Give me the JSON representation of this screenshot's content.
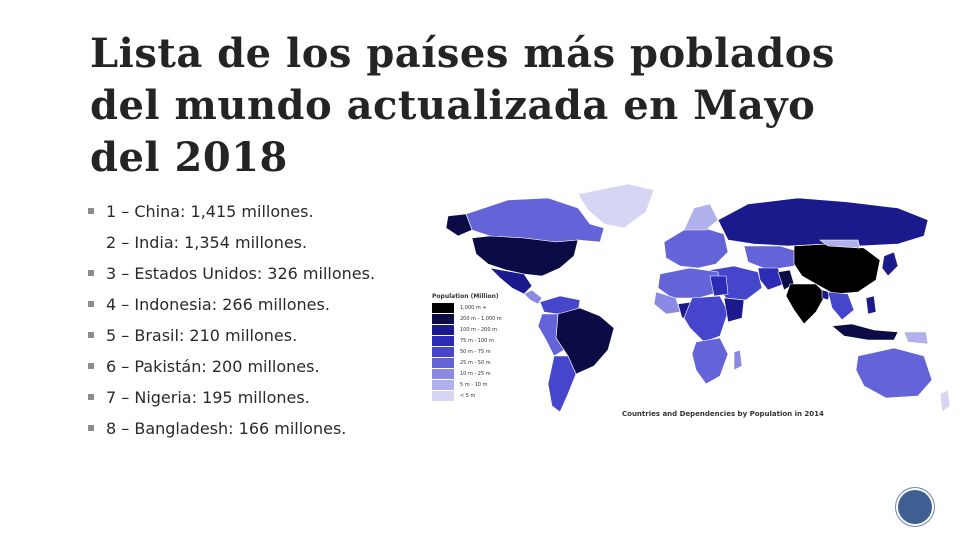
{
  "slide": {
    "title": "Lista de los países más poblados del mundo actualizada en Mayo del 2018",
    "bullets": [
      {
        "text": "1 – China: 1,415 millones.",
        "marker": true
      },
      {
        "text": "2 – India: 1,354 millones.",
        "marker": false
      },
      {
        "text": "3 – Estados Unidos: 326 millones.",
        "marker": true
      },
      {
        "text": "4 – Indonesia: 266 millones.",
        "marker": true
      },
      {
        "text": "5 – Brasil: 210 millones.",
        "marker": true
      },
      {
        "text": "6 – Pakistán: 200 millones.",
        "marker": true
      },
      {
        "text": "7 – Nigeria: 195 millones.",
        "marker": true
      },
      {
        "text": "8 – Bangladesh: 166 millones.",
        "marker": true
      }
    ]
  },
  "map": {
    "legend_title": "Population (Million)",
    "legend": [
      {
        "label": "1,000 m +",
        "color": "#000000"
      },
      {
        "label": "200 m - 1,000 m",
        "color": "#0b0b45"
      },
      {
        "label": "100 m - 200 m",
        "color": "#1a1a8c"
      },
      {
        "label": "75 m - 100 m",
        "color": "#2b2bb5"
      },
      {
        "label": "50 m - 75 m",
        "color": "#4646cc"
      },
      {
        "label": "25 m - 50 m",
        "color": "#6464d8"
      },
      {
        "label": "10 m - 25 m",
        "color": "#8a8ae2"
      },
      {
        "label": "5 m - 10 m",
        "color": "#b0b0ec"
      },
      {
        "label": "< 5 m",
        "color": "#d6d6f4"
      }
    ],
    "caption": "Countries and Dependencies by Population in 2014"
  },
  "colors": {
    "title": "#242424",
    "text": "#2a2a2a",
    "bullet": "#8c8c8c",
    "nav": "#3f5f92"
  }
}
